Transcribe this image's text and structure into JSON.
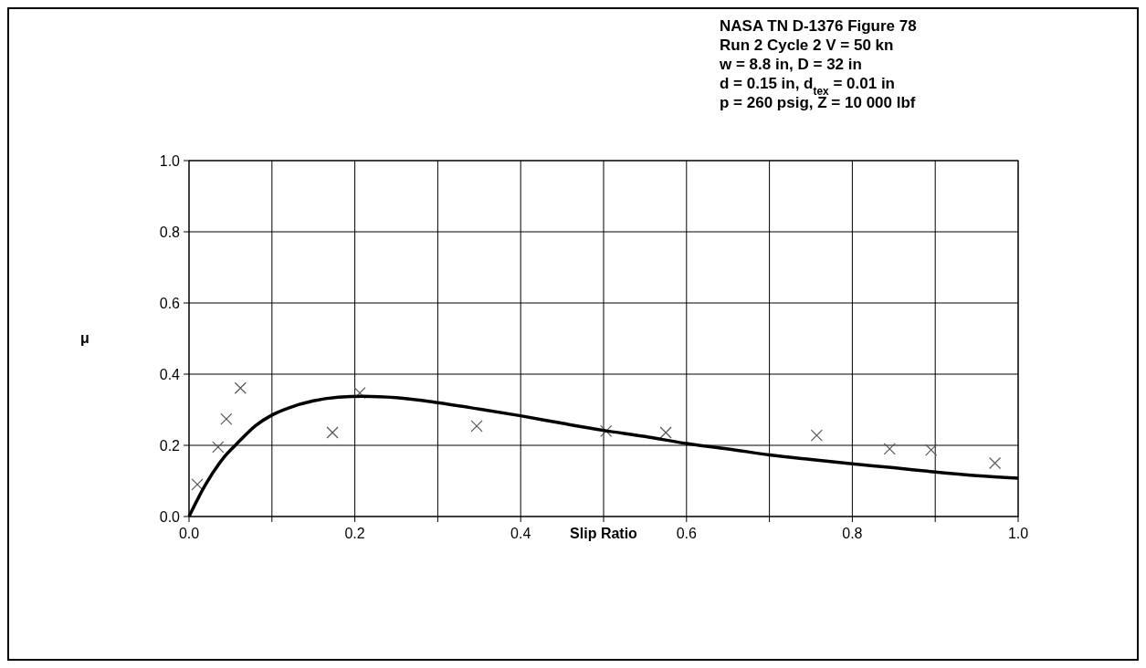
{
  "chart_data": {
    "type": "scatter",
    "title": "NASA TN D-1376 Figure 78",
    "annotations": [
      "Run 2 Cycle 2 V = 50 kn",
      "w = 8.8 in, D = 32 in",
      "d = 0.15 in, d$_{tex}$ = 0.01 in",
      "p = 260 psig, Z = 10 000 lbf"
    ],
    "xlabel": "Slip Ratio",
    "ylabel": "μ",
    "xlim": [
      0,
      1
    ],
    "ylim": [
      0,
      1
    ],
    "xticks": [
      {
        "value": 0,
        "label": "0.0"
      },
      {
        "value": 0.1,
        "label": null
      },
      0.2,
      {
        "value": 0.3,
        "label": null
      },
      0.4,
      {
        "value": 0.5,
        "label": null
      },
      0.6,
      {
        "value": 0.7,
        "label": null
      },
      0.8,
      {
        "value": 0.9,
        "label": null
      },
      {
        "value": 1,
        "label": "1.0"
      }
    ],
    "yticks": [
      {
        "value": 0,
        "label": "0.0"
      },
      0.2,
      0.4,
      0.6,
      0.8,
      {
        "value": 1,
        "label": "1.0"
      }
    ],
    "grid": true,
    "series": [
      {
        "color": "#555555",
        "marker": "cross",
        "x": [
          0.01,
          0.035,
          0.045,
          0.062,
          0.173,
          0.206,
          0.347,
          0.503,
          0.575,
          0.757,
          0.845,
          0.895,
          0.972
        ],
        "values": [
          0.09,
          0.195,
          0.274,
          0.361,
          0.236,
          0.347,
          0.254,
          0.24,
          0.236,
          0.228,
          0.19,
          0.187,
          0.15
        ]
      },
      {
        "type": "line",
        "color": "#000000",
        "line_style": "solid",
        "x": [
          0,
          0.02,
          0.04,
          0.06,
          0.08,
          0.1,
          0.12,
          0.15,
          0.18,
          0.21,
          0.25,
          0.3,
          0.35,
          0.4,
          0.45,
          0.5,
          0.55,
          0.6,
          0.65,
          0.7,
          0.75,
          0.8,
          0.85,
          0.9,
          0.95,
          1.0
        ],
        "values": [
          0,
          0.09,
          0.16,
          0.21,
          0.255,
          0.285,
          0.305,
          0.325,
          0.335,
          0.338,
          0.334,
          0.32,
          0.302,
          0.283,
          0.262,
          0.242,
          0.225,
          0.205,
          0.19,
          0.173,
          0.16,
          0.148,
          0.137,
          0.125,
          0.115,
          0.108
        ]
      }
    ]
  }
}
